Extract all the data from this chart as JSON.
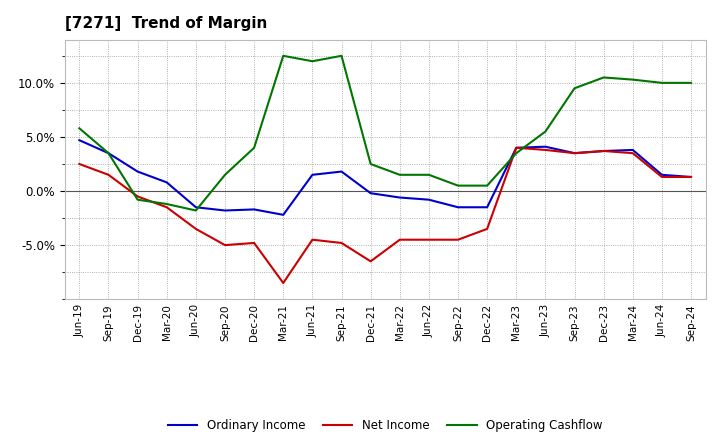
{
  "title": "[7271]  Trend of Margin",
  "title_fontsize": 11,
  "background_color": "#ffffff",
  "plot_bg_color": "#ffffff",
  "grid_color": "#999999",
  "x_labels": [
    "Jun-19",
    "Sep-19",
    "Dec-19",
    "Mar-20",
    "Jun-20",
    "Sep-20",
    "Dec-20",
    "Mar-21",
    "Jun-21",
    "Sep-21",
    "Dec-21",
    "Mar-22",
    "Jun-22",
    "Sep-22",
    "Dec-22",
    "Mar-23",
    "Jun-23",
    "Sep-23",
    "Dec-23",
    "Mar-24",
    "Jun-24",
    "Sep-24"
  ],
  "ordinary_income": [
    4.7,
    3.5,
    1.8,
    0.8,
    -1.5,
    -1.8,
    -1.7,
    -2.2,
    1.5,
    1.8,
    -0.2,
    -0.6,
    -0.8,
    -1.5,
    -1.5,
    4.0,
    4.1,
    3.5,
    3.7,
    3.8,
    1.5,
    1.3
  ],
  "net_income": [
    2.5,
    1.5,
    -0.5,
    -1.5,
    -3.5,
    -5.0,
    -4.8,
    -8.5,
    -4.5,
    -4.8,
    -6.5,
    -4.5,
    -4.5,
    -4.5,
    -3.5,
    4.0,
    3.8,
    3.5,
    3.7,
    3.5,
    1.3,
    1.3
  ],
  "operating_cashflow": [
    5.8,
    3.5,
    -0.8,
    -1.2,
    -1.8,
    1.5,
    4.0,
    12.5,
    12.0,
    12.5,
    2.5,
    1.5,
    1.5,
    0.5,
    0.5,
    3.5,
    5.5,
    9.5,
    10.5,
    10.3,
    10.0,
    10.0
  ],
  "ylim": [
    -10,
    14
  ],
  "ytick_vals": [
    -5.0,
    0.0,
    5.0,
    10.0
  ],
  "line_colors": {
    "ordinary_income": "#0000cc",
    "net_income": "#cc0000",
    "operating_cashflow": "#007700"
  },
  "legend_labels": [
    "Ordinary Income",
    "Net Income",
    "Operating Cashflow"
  ]
}
